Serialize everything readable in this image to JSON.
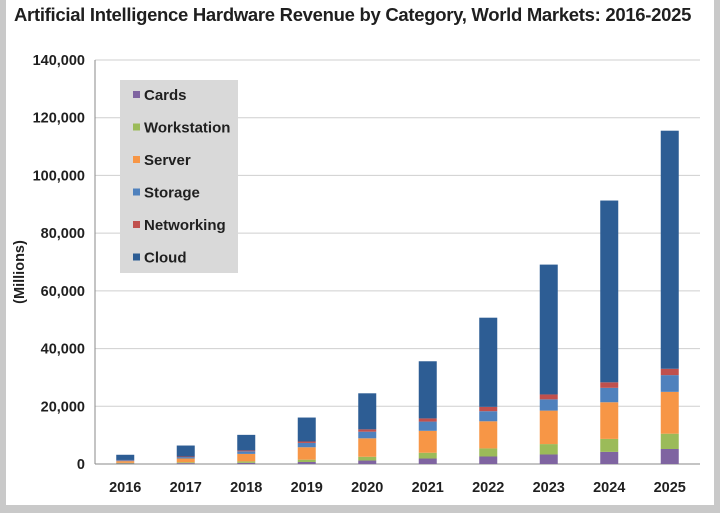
{
  "chart_data": {
    "type": "bar",
    "stacked": true,
    "title": "Artificial Intelligence Hardware Revenue by Category, World Markets: 2016-2025",
    "xlabel": "",
    "ylabel": "(Millions)",
    "ylim": [
      0,
      140000
    ],
    "y_ticks": [
      0,
      20000,
      40000,
      60000,
      80000,
      100000,
      120000,
      140000
    ],
    "y_tick_labels": [
      "0",
      "20,000",
      "40,000",
      "60,000",
      "80,000",
      "100,000",
      "120,000",
      "140,000"
    ],
    "grid": true,
    "legend_position": "top-left",
    "categories": [
      "2016",
      "2017",
      "2018",
      "2019",
      "2020",
      "2021",
      "2022",
      "2023",
      "2024",
      "2025"
    ],
    "series": [
      {
        "name": "Cards",
        "color": "#7f64a1",
        "values": [
          200,
          300,
          400,
          700,
          1200,
          1900,
          2600,
          3300,
          4200,
          5200
        ]
      },
      {
        "name": "Workstation",
        "color": "#9bbb59",
        "values": [
          200,
          300,
          500,
          800,
          1300,
          2000,
          2800,
          3600,
          4500,
          5300
        ]
      },
      {
        "name": "Server",
        "color": "#f79646",
        "values": [
          600,
          1300,
          2600,
          4300,
          6400,
          7600,
          9400,
          11600,
          12700,
          14500
        ]
      },
      {
        "name": "Storage",
        "color": "#4f81bd",
        "values": [
          300,
          500,
          900,
          1500,
          2300,
          3200,
          3500,
          3900,
          5000,
          5800
        ]
      },
      {
        "name": "Networking",
        "color": "#c0504d",
        "values": [
          100,
          200,
          300,
          500,
          800,
          1100,
          1500,
          1700,
          1900,
          2200
        ]
      },
      {
        "name": "Cloud",
        "color": "#2d5d94",
        "values": [
          1800,
          3800,
          5400,
          8300,
          12500,
          19800,
          30900,
          45000,
          63000,
          82500
        ]
      }
    ]
  }
}
